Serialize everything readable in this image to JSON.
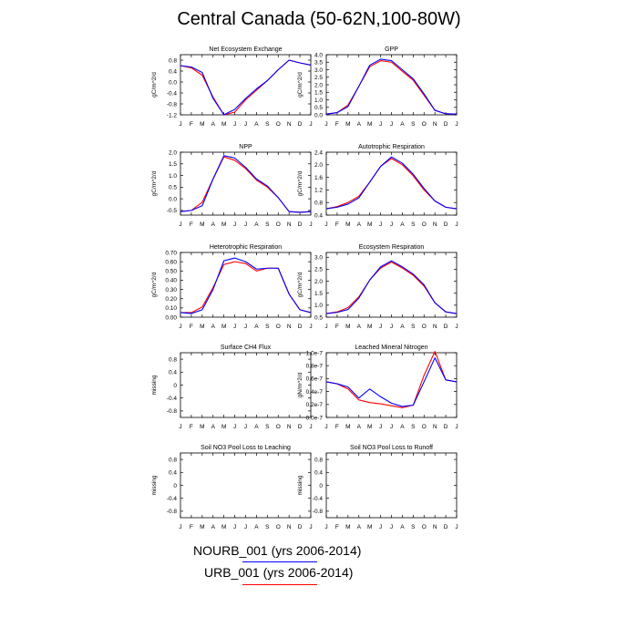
{
  "title": "Central Canada (50-62N,100-80W)",
  "colors": {
    "series1": "#0000ff",
    "series2": "#ff0000"
  },
  "legend": [
    {
      "label": "NOURB_001 (yrs 2006-2014)",
      "color": "#0000ff"
    },
    {
      "label": "URB_001 (yrs 2006-2014)",
      "color": "#ff0000"
    }
  ],
  "chart_data": [
    {
      "type": "line",
      "title": "Net Ecosystem Exchange",
      "ylabel": "gC/m^2/d",
      "categories": [
        "J",
        "F",
        "M",
        "A",
        "M",
        "J",
        "J",
        "A",
        "S",
        "O",
        "N",
        "D",
        "J"
      ],
      "ylim": [
        -1.2,
        1.0
      ],
      "yticks": [
        -1.2,
        -0.8,
        -0.4,
        0.0,
        0.4,
        0.8
      ],
      "yticklabels": [
        "-1.2",
        "-0.8",
        "-0.4",
        "0.0",
        "0.4",
        "0.8"
      ],
      "series": [
        {
          "name": "NOURB_001 (yrs 2006-2014)",
          "color": "#0000ff",
          "values": [
            0.6,
            0.55,
            0.35,
            -0.6,
            -1.2,
            -1.0,
            -0.6,
            -0.25,
            0.05,
            0.45,
            0.8,
            0.7,
            0.62
          ]
        },
        {
          "name": "URB_001 (yrs 2006-2014)",
          "color": "#ff0000",
          "values": [
            0.6,
            0.52,
            0.25,
            -0.55,
            -1.2,
            -1.1,
            -0.65,
            -0.3,
            0.05,
            0.45,
            0.8,
            0.7,
            0.62
          ]
        }
      ]
    },
    {
      "type": "line",
      "title": "GPP",
      "ylabel": "gC/m^2/d",
      "categories": [
        "J",
        "F",
        "M",
        "A",
        "M",
        "J",
        "J",
        "A",
        "S",
        "O",
        "N",
        "D",
        "J"
      ],
      "ylim": [
        0.0,
        4.0
      ],
      "yticks": [
        0.0,
        0.5,
        1.0,
        1.5,
        2.0,
        2.5,
        3.0,
        3.5,
        4.0
      ],
      "yticklabels": [
        "0.0",
        "0.5",
        "1.0",
        "1.5",
        "2.0",
        "2.5",
        "3.0",
        "3.5",
        "4.0"
      ],
      "series": [
        {
          "name": "NOURB_001 (yrs 2006-2014)",
          "color": "#0000ff",
          "values": [
            0.05,
            0.15,
            0.55,
            1.9,
            3.3,
            3.7,
            3.6,
            3.0,
            2.4,
            1.4,
            0.3,
            0.07,
            0.05
          ]
        },
        {
          "name": "URB_001 (yrs 2006-2014)",
          "color": "#ff0000",
          "values": [
            0.05,
            0.15,
            0.65,
            1.9,
            3.2,
            3.6,
            3.5,
            2.9,
            2.3,
            1.3,
            0.3,
            0.07,
            0.05
          ]
        }
      ]
    },
    {
      "type": "line",
      "title": "NPP",
      "ylabel": "gC/m^2/d",
      "categories": [
        "J",
        "F",
        "M",
        "A",
        "M",
        "J",
        "J",
        "A",
        "S",
        "O",
        "N",
        "D",
        "J"
      ],
      "ylim": [
        -0.7,
        2.0
      ],
      "yticks": [
        -0.5,
        0.0,
        0.5,
        1.0,
        1.5,
        2.0
      ],
      "yticklabels": [
        "-0.5",
        "0.0",
        "0.5",
        "1.0",
        "1.5",
        "2.0"
      ],
      "series": [
        {
          "name": "NOURB_001 (yrs 2006-2014)",
          "color": "#0000ff",
          "values": [
            -0.55,
            -0.5,
            -0.3,
            0.85,
            1.85,
            1.75,
            1.35,
            0.85,
            0.55,
            0.05,
            -0.55,
            -0.58,
            -0.55
          ]
        },
        {
          "name": "URB_001 (yrs 2006-2014)",
          "color": "#ff0000",
          "values": [
            -0.55,
            -0.5,
            -0.15,
            0.85,
            1.8,
            1.65,
            1.3,
            0.8,
            0.5,
            0.05,
            -0.55,
            -0.58,
            -0.55
          ]
        }
      ]
    },
    {
      "type": "line",
      "title": "Autotrophic Respiration",
      "ylabel": "gC/m^2/d",
      "categories": [
        "J",
        "F",
        "M",
        "A",
        "M",
        "J",
        "J",
        "A",
        "S",
        "O",
        "N",
        "D",
        "J"
      ],
      "ylim": [
        0.4,
        2.4
      ],
      "yticks": [
        0.4,
        0.8,
        1.2,
        1.6,
        2.0,
        2.4
      ],
      "yticklabels": [
        "0.4",
        "0.8",
        "1.2",
        "1.6",
        "2.0",
        "2.4"
      ],
      "series": [
        {
          "name": "NOURB_001 (yrs 2006-2014)",
          "color": "#0000ff",
          "values": [
            0.6,
            0.65,
            0.75,
            0.95,
            1.45,
            1.95,
            2.25,
            2.05,
            1.7,
            1.25,
            0.85,
            0.65,
            0.6
          ]
        },
        {
          "name": "URB_001 (yrs 2006-2014)",
          "color": "#ff0000",
          "values": [
            0.6,
            0.67,
            0.8,
            1.0,
            1.45,
            1.95,
            2.2,
            2.0,
            1.65,
            1.2,
            0.85,
            0.65,
            0.6
          ]
        }
      ]
    },
    {
      "type": "line",
      "title": "Heterotrophic Respiration",
      "ylabel": "gC/m^2/d",
      "categories": [
        "J",
        "F",
        "M",
        "A",
        "M",
        "J",
        "J",
        "A",
        "S",
        "O",
        "N",
        "D",
        "J"
      ],
      "ylim": [
        0.0,
        0.7
      ],
      "yticks": [
        0.0,
        0.1,
        0.2,
        0.3,
        0.4,
        0.5,
        0.6,
        0.7
      ],
      "yticklabels": [
        "0.00",
        "0.10",
        "0.20",
        "0.30",
        "0.40",
        "0.50",
        "0.60",
        "0.70"
      ],
      "series": [
        {
          "name": "NOURB_001 (yrs 2006-2014)",
          "color": "#0000ff",
          "values": [
            0.05,
            0.04,
            0.08,
            0.3,
            0.61,
            0.64,
            0.6,
            0.52,
            0.53,
            0.53,
            0.25,
            0.08,
            0.05
          ]
        },
        {
          "name": "URB_001 (yrs 2006-2014)",
          "color": "#ff0000",
          "values": [
            0.05,
            0.05,
            0.11,
            0.32,
            0.57,
            0.6,
            0.58,
            0.5,
            0.53,
            0.53,
            0.25,
            0.08,
            0.05
          ]
        }
      ]
    },
    {
      "type": "line",
      "title": "Ecosystem Respiration",
      "ylabel": "gC/m^2/d",
      "categories": [
        "J",
        "F",
        "M",
        "A",
        "M",
        "J",
        "J",
        "A",
        "S",
        "O",
        "N",
        "D",
        "J"
      ],
      "ylim": [
        0.5,
        3.2
      ],
      "yticks": [
        0.5,
        1.0,
        1.5,
        2.0,
        2.5,
        3.0
      ],
      "yticklabels": [
        "0.5",
        "1.0",
        "1.5",
        "2.0",
        "2.5",
        "3.0"
      ],
      "series": [
        {
          "name": "NOURB_001 (yrs 2006-2014)",
          "color": "#0000ff",
          "values": [
            0.65,
            0.7,
            0.82,
            1.3,
            2.05,
            2.6,
            2.85,
            2.6,
            2.3,
            1.85,
            1.1,
            0.72,
            0.65
          ]
        },
        {
          "name": "URB_001 (yrs 2006-2014)",
          "color": "#ff0000",
          "values": [
            0.65,
            0.72,
            0.9,
            1.35,
            2.05,
            2.55,
            2.8,
            2.55,
            2.25,
            1.8,
            1.1,
            0.72,
            0.65
          ]
        }
      ]
    },
    {
      "type": "line",
      "title": "Surface CH4 Flux",
      "ylabel": "missing",
      "categories": [
        "J",
        "F",
        "M",
        "A",
        "M",
        "J",
        "J",
        "A",
        "S",
        "O",
        "N",
        "D",
        "J"
      ],
      "ylim": [
        -1.0,
        1.0
      ],
      "yticks": [
        -0.8,
        -0.4,
        0.0,
        0.4,
        0.8
      ],
      "yticklabels": [
        "-0.8",
        "-0.4",
        "0",
        "0.4",
        "0.8"
      ],
      "series": []
    },
    {
      "type": "line",
      "title": "Leached Mineral Nitrogen",
      "ylabel": "gN/m^2/d",
      "categories": [
        "J",
        "F",
        "M",
        "A",
        "M",
        "J",
        "J",
        "A",
        "S",
        "O",
        "N",
        "D",
        "J"
      ],
      "ylim": [
        0.0,
        1.0
      ],
      "yticks": [
        0.0,
        0.2,
        0.4,
        0.6,
        0.8,
        1.0
      ],
      "yticklabels": [
        "0.0e-7",
        "0.2e-7",
        "0.4e-7",
        "0.6e-7",
        "0.8e-7",
        "1.0e-7"
      ],
      "series": [
        {
          "name": "NOURB_001 (yrs 2006-2014)",
          "color": "#0000ff",
          "values": [
            0.55,
            0.52,
            0.47,
            0.3,
            0.44,
            0.32,
            0.22,
            0.17,
            0.19,
            0.55,
            0.92,
            0.58,
            0.55
          ]
        },
        {
          "name": "URB_001 (yrs 2006-2014)",
          "color": "#ff0000",
          "values": [
            0.55,
            0.52,
            0.44,
            0.27,
            0.23,
            0.21,
            0.18,
            0.15,
            0.19,
            0.65,
            1.02,
            0.58,
            0.55
          ]
        }
      ]
    },
    {
      "type": "line",
      "title": "Soil NO3 Pool Loss to Leaching",
      "ylabel": "missing",
      "categories": [
        "J",
        "F",
        "M",
        "A",
        "M",
        "J",
        "J",
        "A",
        "S",
        "O",
        "N",
        "D",
        "J"
      ],
      "ylim": [
        -1.0,
        1.0
      ],
      "yticks": [
        -0.8,
        -0.4,
        0.0,
        0.4,
        0.8
      ],
      "yticklabels": [
        "-0.8",
        "-0.4",
        "0",
        "0.4",
        "0.8"
      ],
      "series": []
    },
    {
      "type": "line",
      "title": "Soil NO3 Pool Loss to Runoff",
      "ylabel": "missing",
      "categories": [
        "J",
        "F",
        "M",
        "A",
        "M",
        "J",
        "J",
        "A",
        "S",
        "O",
        "N",
        "D",
        "J"
      ],
      "ylim": [
        -1.0,
        1.0
      ],
      "yticks": [
        -0.8,
        -0.4,
        0.0,
        0.4,
        0.8
      ],
      "yticklabels": [
        "-0.8",
        "-0.4",
        "0",
        "0.4",
        "0.8"
      ],
      "series": []
    }
  ]
}
